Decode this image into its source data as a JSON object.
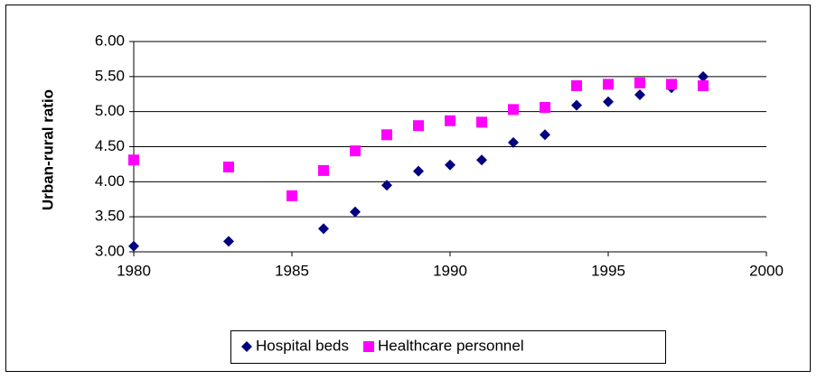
{
  "chart_data": {
    "type": "scatter",
    "y_label": "Urban-rural ratio",
    "xlim": [
      1980,
      2000
    ],
    "xticks": [
      1980,
      1985,
      1990,
      1995,
      2000
    ],
    "ylim": [
      3,
      6
    ],
    "yticks": [
      {
        "value": 3,
        "label": "3.00"
      },
      {
        "value": 3.5,
        "label": "3.50"
      },
      {
        "value": 4,
        "label": "4.00"
      },
      {
        "value": 4.5,
        "label": "4.50"
      },
      {
        "value": 5,
        "label": "5.00"
      },
      {
        "value": 5.5,
        "label": "5.50"
      },
      {
        "value": 6,
        "label": "6.00"
      }
    ],
    "grid": true,
    "legend": "bottom",
    "series": [
      {
        "name": "Hospital beds",
        "color": "#000080",
        "marker": "diamond",
        "x": [
          1980,
          1983,
          1986,
          1987,
          1988,
          1989,
          1990,
          1991,
          1992,
          1993,
          1994,
          1995,
          1996,
          1997,
          1998
        ],
        "values": [
          3.08,
          3.15,
          3.33,
          3.57,
          3.95,
          4.15,
          4.24,
          4.31,
          4.56,
          4.67,
          5.09,
          5.14,
          5.24,
          5.34,
          5.5
        ]
      },
      {
        "name": "Healthcare personnel",
        "color": "#ff00ff",
        "marker": "square",
        "x": [
          1980,
          1983,
          1985,
          1986,
          1987,
          1988,
          1989,
          1990,
          1991,
          1992,
          1993,
          1994,
          1995,
          1996,
          1997,
          1998
        ],
        "values": [
          4.31,
          4.21,
          3.8,
          4.16,
          4.44,
          4.67,
          4.8,
          4.87,
          4.85,
          5.03,
          5.06,
          5.37,
          5.39,
          5.41,
          5.39,
          5.37
        ]
      }
    ]
  }
}
